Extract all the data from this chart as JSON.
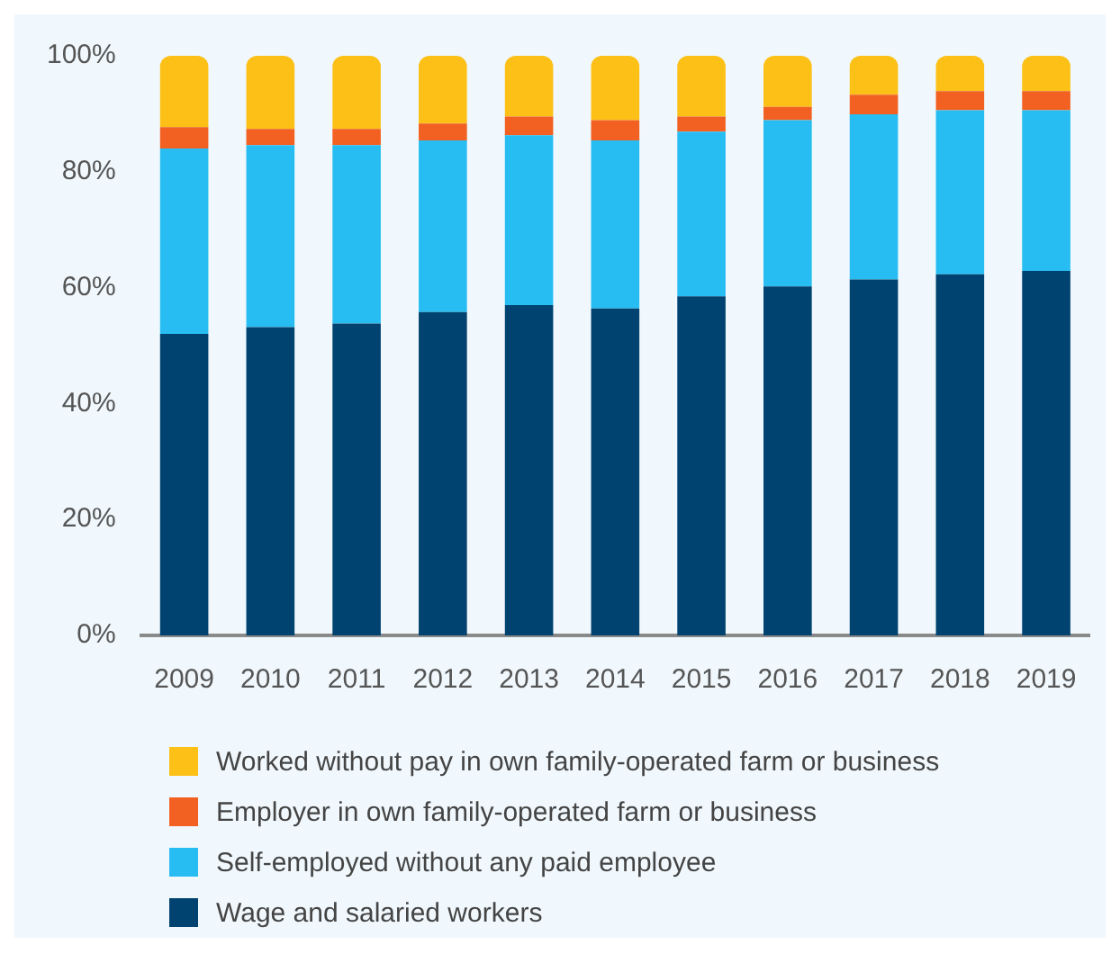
{
  "chart_data": {
    "type": "bar",
    "stacked": true,
    "categories": [
      "2009",
      "2010",
      "2011",
      "2012",
      "2013",
      "2014",
      "2015",
      "2016",
      "2017",
      "2018",
      "2019"
    ],
    "series": [
      {
        "name": "Wage and salaried workers",
        "color": "#004370",
        "values": [
          52.0,
          53.2,
          53.8,
          55.8,
          57.0,
          56.4,
          58.5,
          60.2,
          61.4,
          62.3,
          62.9
        ]
      },
      {
        "name": "Self-employed without any paid employee",
        "color": "#27bdf2",
        "values": [
          32.0,
          31.4,
          30.8,
          29.6,
          29.3,
          29.0,
          28.4,
          28.7,
          28.5,
          28.3,
          27.7
        ]
      },
      {
        "name": "Employer in own family-operated farm or business",
        "color": "#f26122",
        "values": [
          3.7,
          2.8,
          2.8,
          2.9,
          3.2,
          3.5,
          2.6,
          2.3,
          3.4,
          3.3,
          3.3
        ]
      },
      {
        "name": "Worked without pay in own family-operated farm or business",
        "color": "#fcc016",
        "values": [
          12.3,
          12.6,
          12.6,
          11.7,
          10.5,
          11.1,
          10.5,
          8.8,
          6.7,
          6.1,
          6.1
        ]
      }
    ],
    "ylim": [
      0,
      100
    ],
    "yticks": [
      {
        "value": 0,
        "label": "0%"
      },
      {
        "value": 20,
        "label": "20%"
      },
      {
        "value": 40,
        "label": "40%"
      },
      {
        "value": 60,
        "label": "60%"
      },
      {
        "value": 80,
        "label": "80%"
      },
      {
        "value": 100,
        "label": "100%"
      }
    ],
    "grid": false,
    "legend": "bottom"
  }
}
